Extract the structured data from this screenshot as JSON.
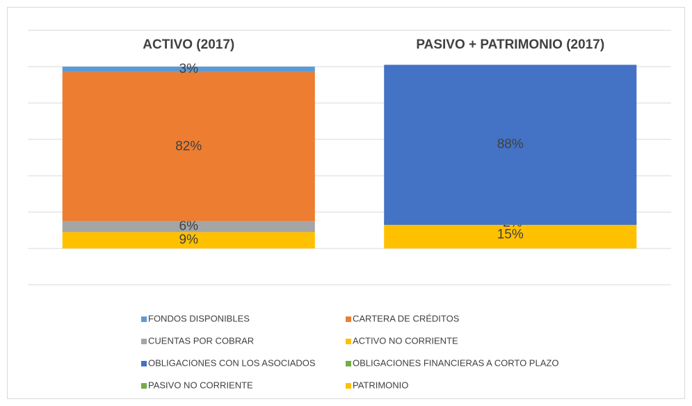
{
  "chart_data": {
    "type": "stacked_bar",
    "categories": [
      "ACTIVO (2017)",
      "PASIVO + PATRIMONIO (2017)"
    ],
    "series": [
      {
        "name": "FONDOS DISPONIBLES",
        "color": "#5b9bd5",
        "values": [
          3,
          null
        ],
        "value_labels": [
          "3%",
          null
        ]
      },
      {
        "name": "CARTERA DE CRÉDITOS",
        "color": "#ed7d31",
        "values": [
          82,
          null
        ],
        "value_labels": [
          "82%",
          null
        ]
      },
      {
        "name": "CUENTAS POR COBRAR",
        "color": "#a5a5a5",
        "values": [
          6,
          null
        ],
        "value_labels": [
          "6%",
          null
        ]
      },
      {
        "name": "ACTIVO NO CORRIENTE",
        "color": "#ffc000",
        "values": [
          9,
          null
        ],
        "value_labels": [
          "9%",
          null
        ]
      },
      {
        "name": "OBLIGACIONES CON LOS ASOCIADOS",
        "color": "#4472c4",
        "values": [
          null,
          88
        ],
        "value_labels": [
          null,
          "88%"
        ]
      },
      {
        "name": "OBLIGACIONES FINANCIERAS A CORTO PLAZO",
        "color": "#70ad47",
        "values": [
          null,
          -2
        ],
        "value_labels": [
          null,
          "-2%"
        ]
      },
      {
        "name": "PASIVO NO CORRIENTE",
        "color": "#70ad47",
        "values": [
          null,
          null
        ],
        "value_labels": [
          null,
          null
        ]
      },
      {
        "name": "PATRIMONIO",
        "color": "#ffc000",
        "values": [
          null,
          15
        ],
        "value_labels": [
          null,
          "15%"
        ]
      }
    ],
    "ylim": [
      -20,
      120
    ],
    "yticks": [
      -20,
      0,
      20,
      40,
      60,
      80,
      100,
      120
    ],
    "grid": true,
    "legend": "bottom"
  }
}
